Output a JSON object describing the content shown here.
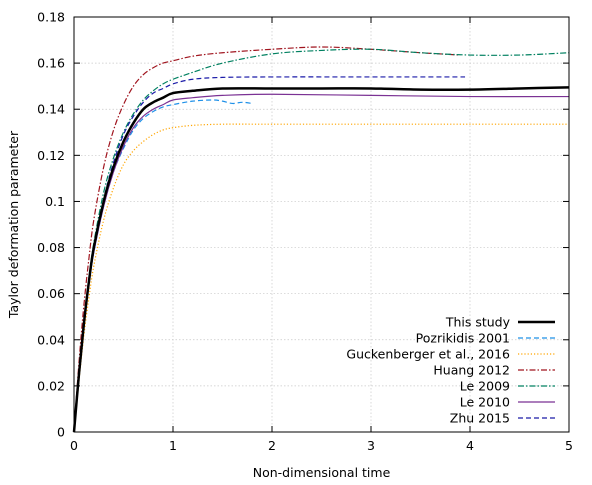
{
  "chart_data": {
    "type": "line",
    "title": "",
    "xlabel": "Non-dimensional time",
    "ylabel": "Taylor deformation parameter",
    "xlim": [
      0,
      5
    ],
    "ylim": [
      0,
      0.18
    ],
    "xticks": [
      0,
      1,
      2,
      3,
      4,
      5
    ],
    "xtick_labels": [
      "0",
      "1",
      "2",
      "3",
      "4",
      "5"
    ],
    "yticks": [
      0,
      0.02,
      0.04,
      0.06,
      0.08,
      0.1,
      0.12,
      0.14,
      0.16,
      0.18
    ],
    "ytick_labels": [
      "0",
      "0.02",
      "0.04",
      "0.06",
      "0.08",
      "0.1",
      "0.12",
      "0.14",
      "0.16",
      "0.18"
    ],
    "grid": true,
    "legend_position": "bottom-right",
    "series": [
      {
        "name": "This study",
        "color": "#000000",
        "dash": "solid",
        "width": 2.5,
        "x": [
          0,
          0.05,
          0.1,
          0.15,
          0.2,
          0.3,
          0.4,
          0.5,
          0.6,
          0.7,
          0.8,
          0.9,
          1.0,
          1.2,
          1.5,
          2.0,
          2.5,
          3.0,
          3.5,
          4.0,
          4.5,
          5.0
        ],
        "y": [
          0,
          0.025,
          0.047,
          0.065,
          0.08,
          0.1,
          0.115,
          0.126,
          0.134,
          0.14,
          0.143,
          0.145,
          0.147,
          0.148,
          0.149,
          0.149,
          0.149,
          0.149,
          0.1485,
          0.1485,
          0.149,
          0.1495
        ]
      },
      {
        "name": "Pozrikidis 2001",
        "color": "#1e90e8",
        "dash": "dashed",
        "width": 1.2,
        "x": [
          0,
          0.05,
          0.1,
          0.15,
          0.2,
          0.3,
          0.4,
          0.5,
          0.6,
          0.7,
          0.8,
          0.9,
          1.0,
          1.2,
          1.4,
          1.5,
          1.6,
          1.7,
          1.8
        ],
        "y": [
          0,
          0.025,
          0.046,
          0.064,
          0.078,
          0.098,
          0.113,
          0.123,
          0.131,
          0.136,
          0.139,
          0.141,
          0.142,
          0.1435,
          0.144,
          0.1435,
          0.1425,
          0.143,
          0.1425
        ]
      },
      {
        "name": "Guckenberger et al., 2016",
        "color": "#ffa500",
        "dash": "dotted",
        "width": 1.2,
        "x": [
          0,
          0.05,
          0.1,
          0.15,
          0.2,
          0.3,
          0.4,
          0.5,
          0.6,
          0.7,
          0.8,
          0.9,
          1.0,
          1.2,
          1.5,
          2.0,
          3.0,
          4.0,
          5.0
        ],
        "y": [
          0,
          0.022,
          0.042,
          0.058,
          0.072,
          0.092,
          0.106,
          0.116,
          0.122,
          0.126,
          0.129,
          0.131,
          0.132,
          0.133,
          0.1335,
          0.1335,
          0.1335,
          0.1335,
          0.1335
        ]
      },
      {
        "name": "Huang 2012",
        "color": "#a0141e",
        "dash": "dashdot",
        "width": 1.2,
        "x": [
          0,
          0.05,
          0.1,
          0.15,
          0.2,
          0.3,
          0.4,
          0.5,
          0.6,
          0.7,
          0.8,
          0.9,
          1.0,
          1.2,
          1.5,
          2.0,
          2.5,
          3.0,
          3.5,
          3.9
        ],
        "y": [
          0,
          0.03,
          0.055,
          0.075,
          0.092,
          0.115,
          0.131,
          0.142,
          0.15,
          0.155,
          0.158,
          0.16,
          0.161,
          0.163,
          0.1645,
          0.166,
          0.167,
          0.166,
          0.1645,
          0.1635
        ]
      },
      {
        "name": "Le 2009",
        "color": "#008060",
        "dash": "dashdot",
        "width": 1.2,
        "x": [
          0,
          0.05,
          0.1,
          0.15,
          0.2,
          0.3,
          0.4,
          0.5,
          0.6,
          0.7,
          0.8,
          0.9,
          1.0,
          1.2,
          1.5,
          2.0,
          2.5,
          3.0,
          3.5,
          4.0,
          4.5,
          5.0
        ],
        "y": [
          0,
          0.026,
          0.048,
          0.066,
          0.082,
          0.104,
          0.119,
          0.13,
          0.138,
          0.144,
          0.148,
          0.151,
          0.153,
          0.156,
          0.16,
          0.164,
          0.1655,
          0.166,
          0.1645,
          0.1635,
          0.1635,
          0.1645
        ]
      },
      {
        "name": "Le 2010",
        "color": "#7b3294",
        "dash": "solid",
        "width": 1.2,
        "x": [
          0,
          0.05,
          0.1,
          0.15,
          0.2,
          0.3,
          0.4,
          0.5,
          0.6,
          0.7,
          0.8,
          0.9,
          1.0,
          1.2,
          1.5,
          2.0,
          3.0,
          4.0,
          5.0
        ],
        "y": [
          0,
          0.025,
          0.046,
          0.064,
          0.078,
          0.098,
          0.113,
          0.124,
          0.132,
          0.137,
          0.14,
          0.142,
          0.144,
          0.145,
          0.146,
          0.1465,
          0.146,
          0.1455,
          0.1455
        ]
      },
      {
        "name": "Zhu 2015",
        "color": "#1a1aa8",
        "dash": "dashed",
        "width": 1.2,
        "x": [
          0,
          0.05,
          0.1,
          0.15,
          0.2,
          0.3,
          0.4,
          0.5,
          0.6,
          0.7,
          0.8,
          0.9,
          1.0,
          1.2,
          1.5,
          2.0,
          3.0,
          3.5,
          3.95
        ],
        "y": [
          0,
          0.025,
          0.047,
          0.065,
          0.08,
          0.101,
          0.117,
          0.129,
          0.137,
          0.143,
          0.147,
          0.149,
          0.151,
          0.153,
          0.1538,
          0.154,
          0.154,
          0.154,
          0.154
        ]
      }
    ]
  }
}
